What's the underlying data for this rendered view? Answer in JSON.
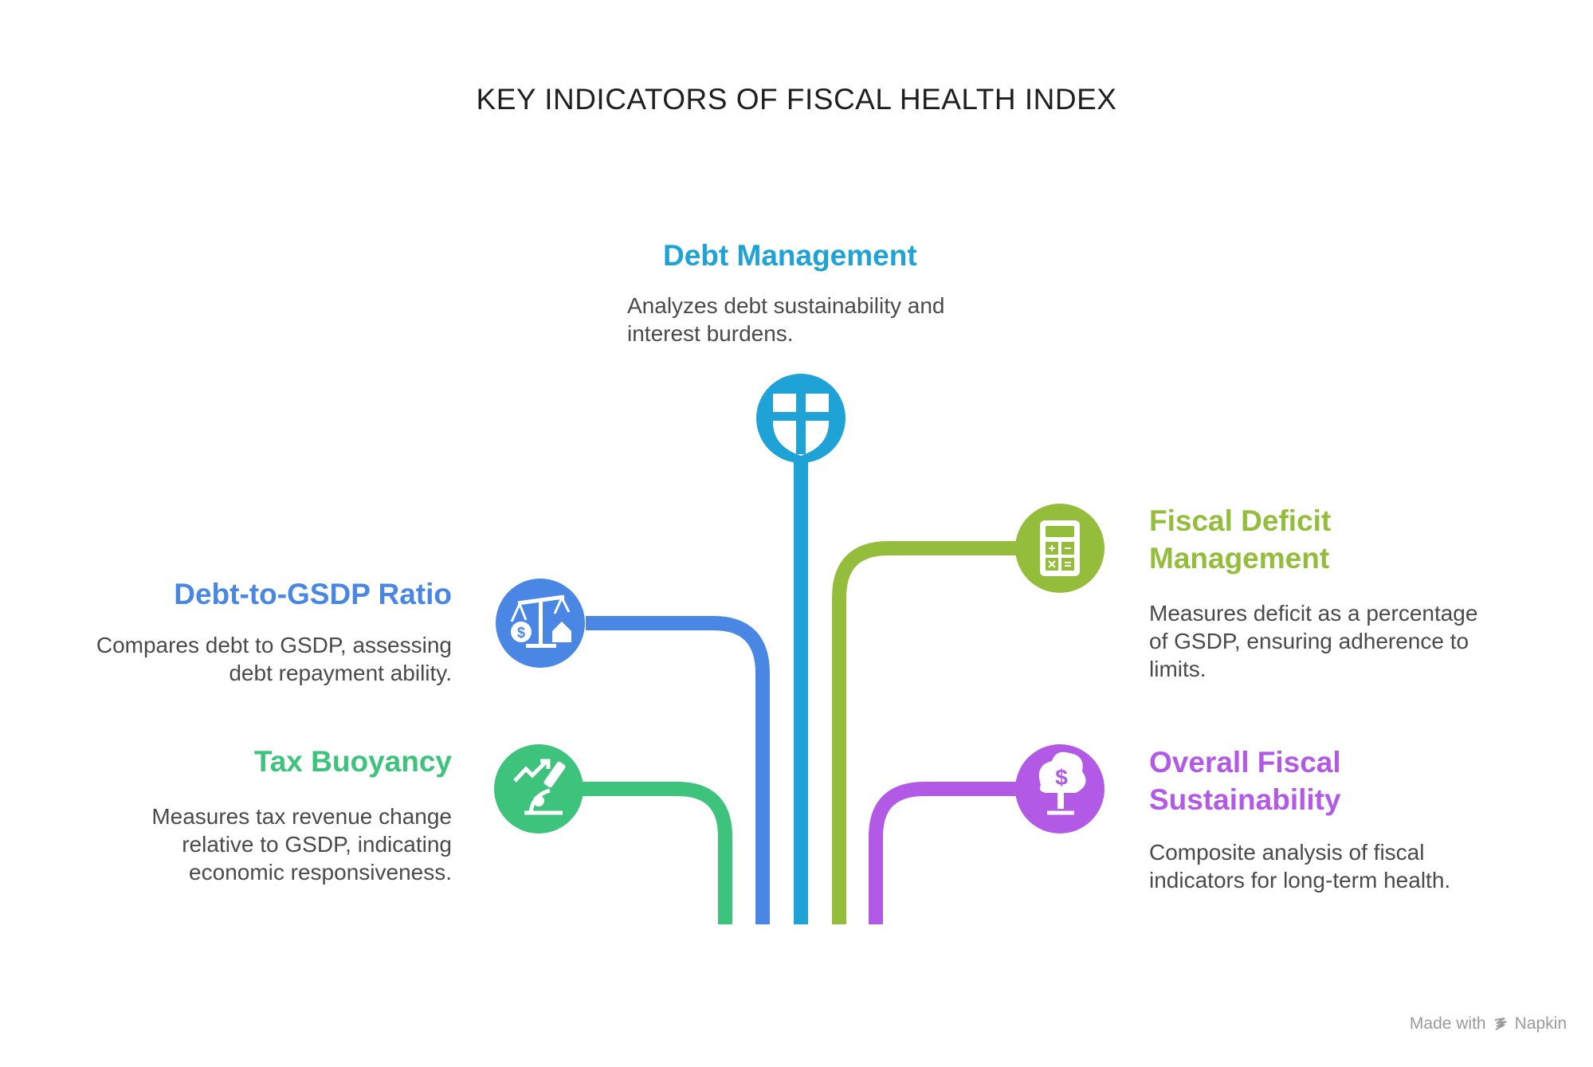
{
  "title": "KEY INDICATORS OF FISCAL HEALTH INDEX",
  "colors": {
    "debt_management": "#1fa3d6",
    "debt_to_gsdp": "#4a86e3",
    "tax_buoyancy": "#3dc37c",
    "fiscal_deficit": "#94bd3c",
    "overall_sustainability": "#b25ae6"
  },
  "items": {
    "debt_management": {
      "heading": "Debt Management",
      "desc_line1": "Analyzes debt sustainability and",
      "desc_line2": "interest burdens.",
      "icon": "shield-icon"
    },
    "debt_to_gsdp": {
      "heading": "Debt-to-GSDP Ratio",
      "desc_line1": "Compares debt to GSDP, assessing",
      "desc_line2": "debt repayment ability.",
      "icon": "scale-icon"
    },
    "tax_buoyancy": {
      "heading": "Tax Buoyancy",
      "desc_line1": "Measures tax revenue change",
      "desc_line2": "relative to GSDP, indicating",
      "desc_line3": "economic responsiveness.",
      "icon": "microscope-trend-icon"
    },
    "fiscal_deficit": {
      "heading_line1": "Fiscal Deficit",
      "heading_line2": "Management",
      "desc_line1": "Measures deficit as a percentage",
      "desc_line2": "of GSDP, ensuring adherence to",
      "desc_line3": "limits.",
      "icon": "calculator-icon"
    },
    "overall_sustainability": {
      "heading_line1": "Overall Fiscal",
      "heading_line2": "Sustainability",
      "desc_line1": "Composite analysis of fiscal",
      "desc_line2": "indicators for long-term health.",
      "icon": "money-tree-icon"
    }
  },
  "watermark": {
    "prefix": "Made with",
    "brand": "Napkin"
  }
}
